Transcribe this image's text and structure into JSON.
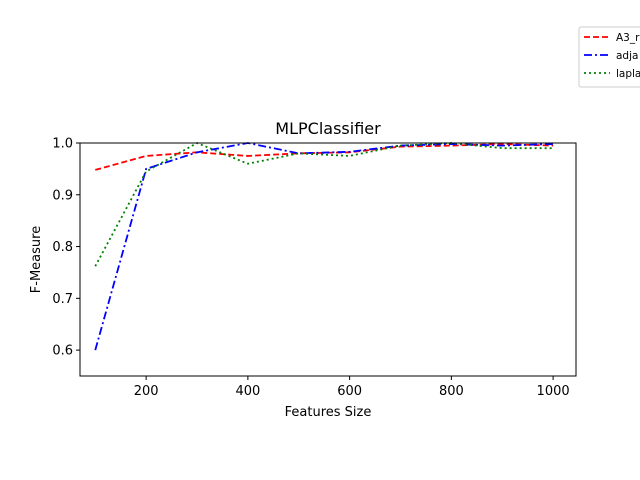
{
  "chart_data": {
    "type": "line",
    "title": "MLPClassifier",
    "xlabel": "Features Size",
    "ylabel": "F-Measure",
    "xlim": [
      70,
      1045
    ],
    "ylim": [
      0.55,
      1.0
    ],
    "xticks": [
      200,
      400,
      600,
      800,
      1000
    ],
    "yticks": [
      0.6,
      0.7,
      0.8,
      0.9,
      1.0
    ],
    "xtick_labels": [
      "200",
      "400",
      "600",
      "800",
      "1000"
    ],
    "ytick_labels": [
      "0.6",
      "0.7",
      "0.8",
      "0.9",
      "1.0"
    ],
    "legend_position": "top-right, outside plot",
    "x": [
      100,
      200,
      300,
      400,
      500,
      600,
      700,
      800,
      900,
      1000
    ],
    "series": [
      {
        "name": "A3_r",
        "color": "#ff0000",
        "dash": "dashed",
        "values": [
          0.948,
          0.975,
          0.982,
          0.975,
          0.98,
          0.982,
          0.993,
          0.995,
          0.998,
          0.995
        ]
      },
      {
        "name": "adja",
        "color": "#0000ff",
        "dash": "dashdot",
        "values": [
          0.6,
          0.95,
          0.982,
          1.0,
          0.98,
          0.983,
          0.995,
          0.998,
          0.995,
          0.998
        ]
      },
      {
        "name": "lapla",
        "color": "#008000",
        "dash": "dotted",
        "values": [
          0.762,
          0.945,
          1.0,
          0.96,
          0.98,
          0.975,
          0.995,
          1.0,
          0.99,
          0.99
        ]
      }
    ]
  }
}
